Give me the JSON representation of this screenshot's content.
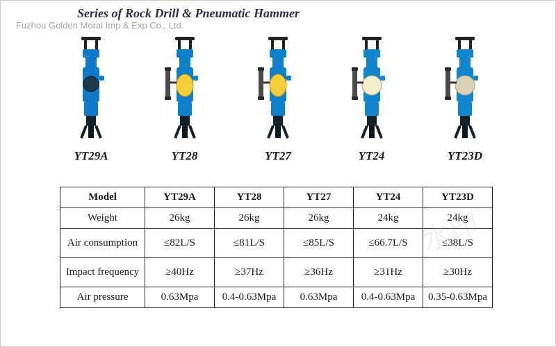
{
  "title": "Series of Rock Drill & Pneumatic Hammer",
  "watermark": "Fuzhou Golden Moral Imp & Exp Co., Ltd.",
  "products": [
    {
      "label": "YT29A",
      "body_color": "#1079c9",
      "accent_color": "#f4c430",
      "has_side_lubricator": false,
      "accent_shape": "circle_dark"
    },
    {
      "label": "YT28",
      "body_color": "#0f7fc9",
      "accent_color": "#f7cf3a",
      "has_side_lubricator": true,
      "accent_shape": "oval_yellow"
    },
    {
      "label": "YT27",
      "body_color": "#0f7fc9",
      "accent_color": "#f7cf3a",
      "has_side_lubricator": true,
      "accent_shape": "oval_yellow"
    },
    {
      "label": "YT24",
      "body_color": "#1285cf",
      "accent_color": "#f3eecb",
      "has_side_lubricator": true,
      "accent_shape": "circle_cream"
    },
    {
      "label": "YT23D",
      "body_color": "#1285cf",
      "accent_color": "#d9d2b8",
      "has_side_lubricator": true,
      "accent_shape": "circle_cream"
    }
  ],
  "table": {
    "header_label": "Model",
    "columns": [
      "YT29A",
      "YT28",
      "YT27",
      "YT24",
      "YT23D"
    ],
    "rows": [
      {
        "label": "Weight",
        "tall": false,
        "cells": [
          "26kg",
          "26kg",
          "26kg",
          "24kg",
          "24kg"
        ]
      },
      {
        "label": "Air consumption",
        "tall": true,
        "cells": [
          "≤82L/S",
          "≤81L/S",
          "≤85L/S",
          "≤66.7L/S",
          "≤38L/S"
        ]
      },
      {
        "label": "Impact frequency",
        "tall": true,
        "cells": [
          "≥40Hz",
          "≥37Hz",
          "≥36Hz",
          "≥31Hz",
          "≥30Hz"
        ]
      },
      {
        "label": "Air pressure",
        "tall": false,
        "cells": [
          "0.63Mpa",
          "0.4-0.63Mpa",
          "0.63Mpa",
          "0.4-0.63Mpa",
          "0.35-0.63Mpa"
        ]
      }
    ]
  },
  "colors": {
    "title_color": "#2b2b4a",
    "border_color": "#222222",
    "text_color": "#1a1a1a",
    "background": "#ffffff"
  },
  "typography": {
    "title_fontsize": 18,
    "label_fontsize": 17,
    "table_fontsize": 15
  }
}
